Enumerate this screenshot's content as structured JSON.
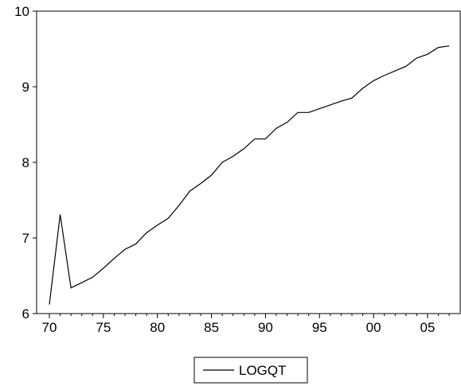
{
  "chart_data": {
    "type": "line",
    "title": "",
    "xlabel": "",
    "ylabel": "",
    "x_tick_labels": [
      "70",
      "75",
      "80",
      "85",
      "90",
      "95",
      "00",
      "05"
    ],
    "y_ticks": [
      6,
      7,
      8,
      9,
      10
    ],
    "ylim": [
      6,
      10
    ],
    "xlim": [
      1970,
      2007.6
    ],
    "grid": false,
    "legend_position": "bottom-center",
    "series": [
      {
        "name": "LOGQT",
        "color": "#000000",
        "x": [
          1970,
          1971,
          1972,
          1973,
          1974,
          1975,
          1976,
          1977,
          1978,
          1979,
          1980,
          1981,
          1982,
          1983,
          1984,
          1985,
          1986,
          1987,
          1988,
          1989,
          1990,
          1991,
          1992,
          1993,
          1994,
          1995,
          1996,
          1997,
          1998,
          1999,
          2000,
          2001,
          2002,
          2003,
          2004,
          2005,
          2006,
          2007
        ],
        "values": [
          6.12,
          7.31,
          6.34,
          6.41,
          6.48,
          6.6,
          6.73,
          6.85,
          6.92,
          7.07,
          7.17,
          7.26,
          7.43,
          7.62,
          7.72,
          7.83,
          8.0,
          8.08,
          8.18,
          8.31,
          8.31,
          8.45,
          8.53,
          8.66,
          8.66,
          8.71,
          8.76,
          8.81,
          8.85,
          8.98,
          9.08,
          9.15,
          9.21,
          9.27,
          9.38,
          9.43,
          9.52,
          9.54
        ]
      }
    ]
  }
}
